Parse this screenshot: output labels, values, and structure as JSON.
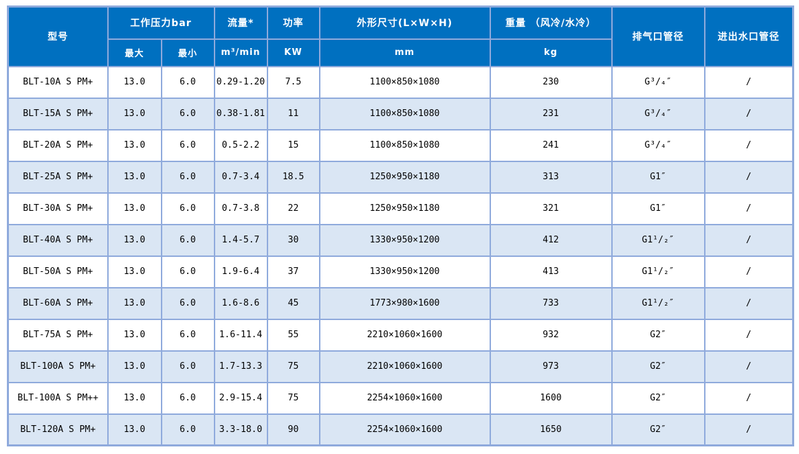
{
  "colors": {
    "header_bg": "#0070C0",
    "grid_border": "#8FAADC",
    "row_alt_bg": "#DAE6F4",
    "row_bg": "#FFFFFF",
    "header_text": "#FFFFFF",
    "body_text": "#000000"
  },
  "table": {
    "header": {
      "model": "型号",
      "working_pressure": "工作压力bar",
      "pressure_max": "最大",
      "pressure_min": "最小",
      "flow": "流量*",
      "flow_unit": "m³/min",
      "power": "功率",
      "power_unit": "KW",
      "dimensions": "外形尺寸(L×W×H)",
      "dimensions_unit": "mm",
      "weight": "重量 （风冷/水冷）",
      "weight_unit": "kg",
      "outlet": "排气口管径",
      "water_port": "进出水口管径"
    },
    "columns": [
      "model",
      "pressure_max",
      "pressure_min",
      "flow",
      "power",
      "dimensions",
      "weight",
      "outlet_diameter",
      "water_port"
    ],
    "rows": [
      [
        "BLT-10A S PM+",
        "13.0",
        "6.0",
        "0.29-1.20",
        "7.5",
        "1100×850×1080",
        "230",
        "G³/₄″",
        "/"
      ],
      [
        "BLT-15A S PM+",
        "13.0",
        "6.0",
        "0.38-1.81",
        "11",
        "1100×850×1080",
        "231",
        "G³/₄″",
        "/"
      ],
      [
        "BLT-20A S PM+",
        "13.0",
        "6.0",
        "0.5-2.2",
        "15",
        "1100×850×1080",
        "241",
        "G³/₄″",
        "/"
      ],
      [
        "BLT-25A S PM+",
        "13.0",
        "6.0",
        "0.7-3.4",
        "18.5",
        "1250×950×1180",
        "313",
        "G1″",
        "/"
      ],
      [
        "BLT-30A S PM+",
        "13.0",
        "6.0",
        "0.7-3.8",
        "22",
        "1250×950×1180",
        "321",
        "G1″",
        "/"
      ],
      [
        "BLT-40A S PM+",
        "13.0",
        "6.0",
        "1.4-5.7",
        "30",
        "1330×950×1200",
        "412",
        "G1¹/₂″",
        "/"
      ],
      [
        "BLT-50A S PM+",
        "13.0",
        "6.0",
        "1.9-6.4",
        "37",
        "1330×950×1200",
        "413",
        "G1¹/₂″",
        "/"
      ],
      [
        "BLT-60A S PM+",
        "13.0",
        "6.0",
        "1.6-8.6",
        "45",
        "1773×980×1600",
        "733",
        "G1¹/₂″",
        "/"
      ],
      [
        "BLT-75A S PM+",
        "13.0",
        "6.0",
        "1.6-11.4",
        "55",
        "2210×1060×1600",
        "932",
        "G2″",
        "/"
      ],
      [
        "BLT-100A S PM+",
        "13.0",
        "6.0",
        "1.7-13.3",
        "75",
        "2210×1060×1600",
        "973",
        "G2″",
        "/"
      ],
      [
        "BLT-100A S PM++",
        "13.0",
        "6.0",
        "2.9-15.4",
        "75",
        "2254×1060×1600",
        "1600",
        "G2″",
        "/"
      ],
      [
        "BLT-120A S PM+",
        "13.0",
        "6.0",
        "3.3-18.0",
        "90",
        "2254×1060×1600",
        "1650",
        "G2″",
        "/"
      ]
    ]
  }
}
